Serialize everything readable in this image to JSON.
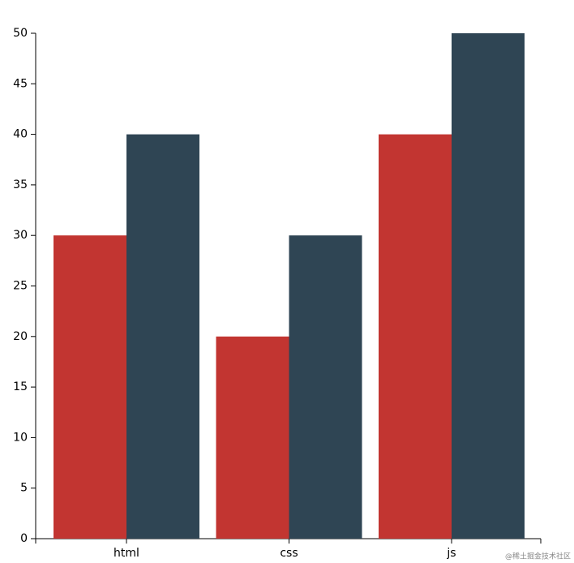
{
  "chart_data": {
    "type": "bar",
    "categories": [
      "html",
      "css",
      "js"
    ],
    "series": [
      {
        "color": "#c23531",
        "values": [
          30,
          20,
          40
        ]
      },
      {
        "color": "#2f4554",
        "values": [
          40,
          30,
          50
        ]
      }
    ],
    "ylim": [
      0,
      50
    ],
    "yticks": [
      0,
      5,
      10,
      15,
      20,
      25,
      30,
      35,
      40,
      45,
      50
    ],
    "watermark": "@稀土掘金技术社区"
  }
}
